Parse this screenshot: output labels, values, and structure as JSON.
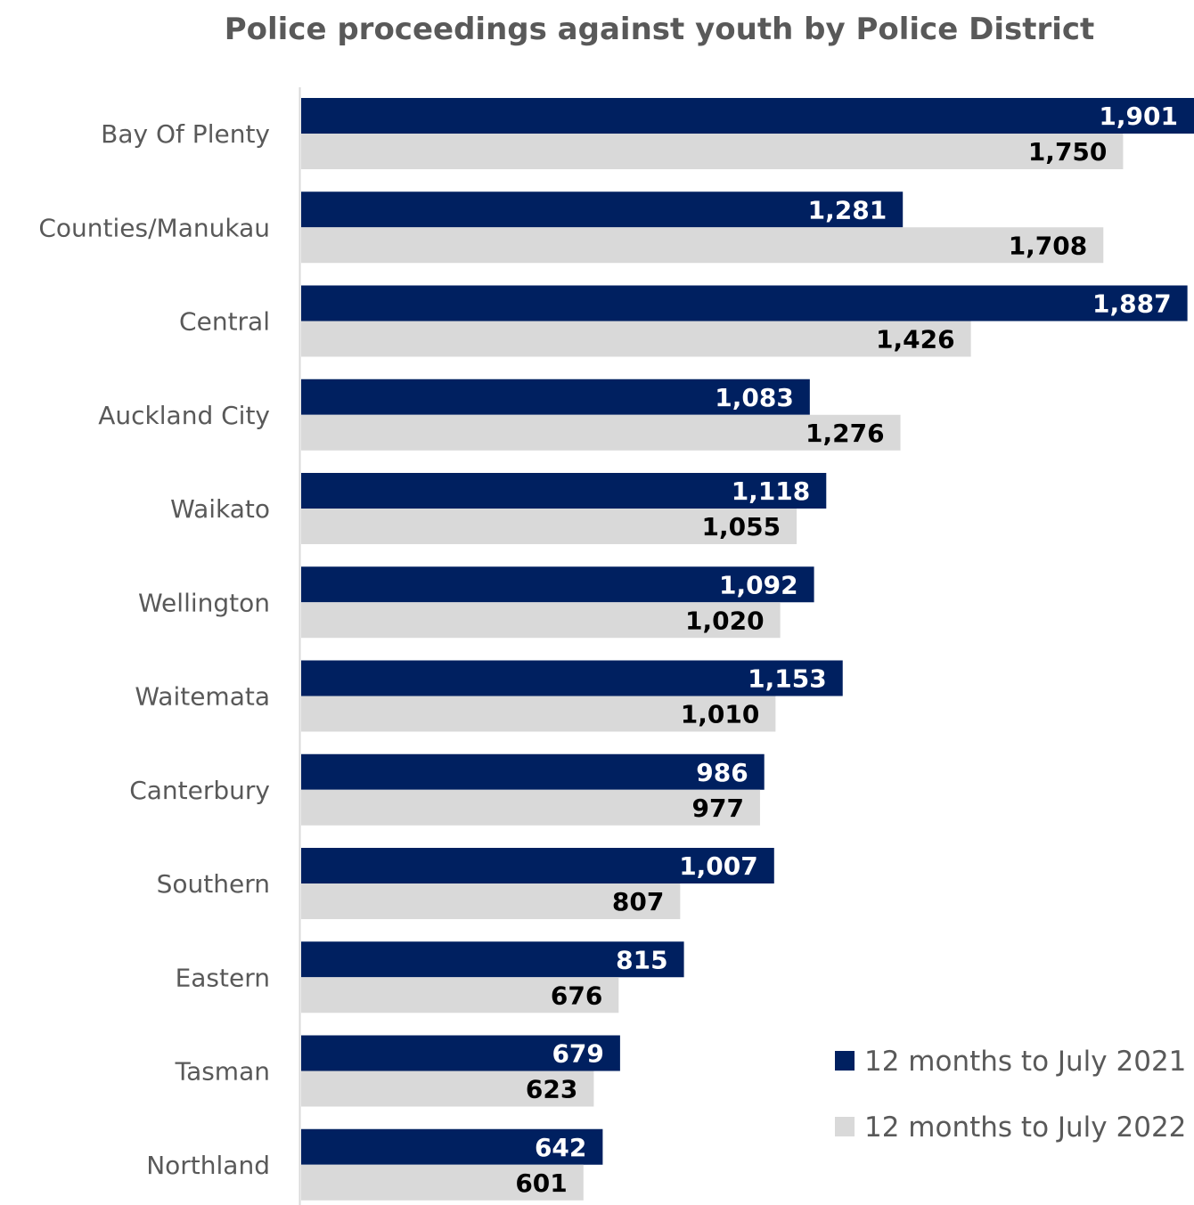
{
  "chart_data": {
    "type": "bar",
    "orientation": "horizontal",
    "title": "Police proceedings against youth by Police District",
    "xlabel": "",
    "ylabel": "",
    "xlim": [
      0,
      1901
    ],
    "grid": false,
    "legend_position": "bottom-right",
    "categories": [
      "Bay Of Plenty",
      "Counties/Manukau",
      "Central",
      "Auckland City",
      "Waikato",
      "Wellington",
      "Waitemata",
      "Canterbury",
      "Southern",
      "Eastern",
      "Tasman",
      "Northland"
    ],
    "series": [
      {
        "name": "12 months to July 2021",
        "color": "#002060",
        "label_color": "#ffffff",
        "values": [
          1901,
          1281,
          1887,
          1083,
          1118,
          1092,
          1153,
          986,
          1007,
          815,
          679,
          642
        ],
        "labels": [
          "1,901",
          "1,281",
          "1,887",
          "1,083",
          "1,118",
          "1,092",
          "1,153",
          "986",
          "1,007",
          "815",
          "679",
          "642"
        ]
      },
      {
        "name": "12 months to July 2022",
        "color": "#d9d9d9",
        "label_color": "#000000",
        "values": [
          1750,
          1708,
          1426,
          1276,
          1055,
          1020,
          1010,
          977,
          807,
          676,
          623,
          601
        ],
        "labels": [
          "1,750",
          "1,708",
          "1,426",
          "1,276",
          "1,055",
          "1,020",
          "1,010",
          "977",
          "807",
          "676",
          "623",
          "601"
        ]
      }
    ]
  },
  "colors": {
    "axis_line": "#d9d9d9"
  }
}
